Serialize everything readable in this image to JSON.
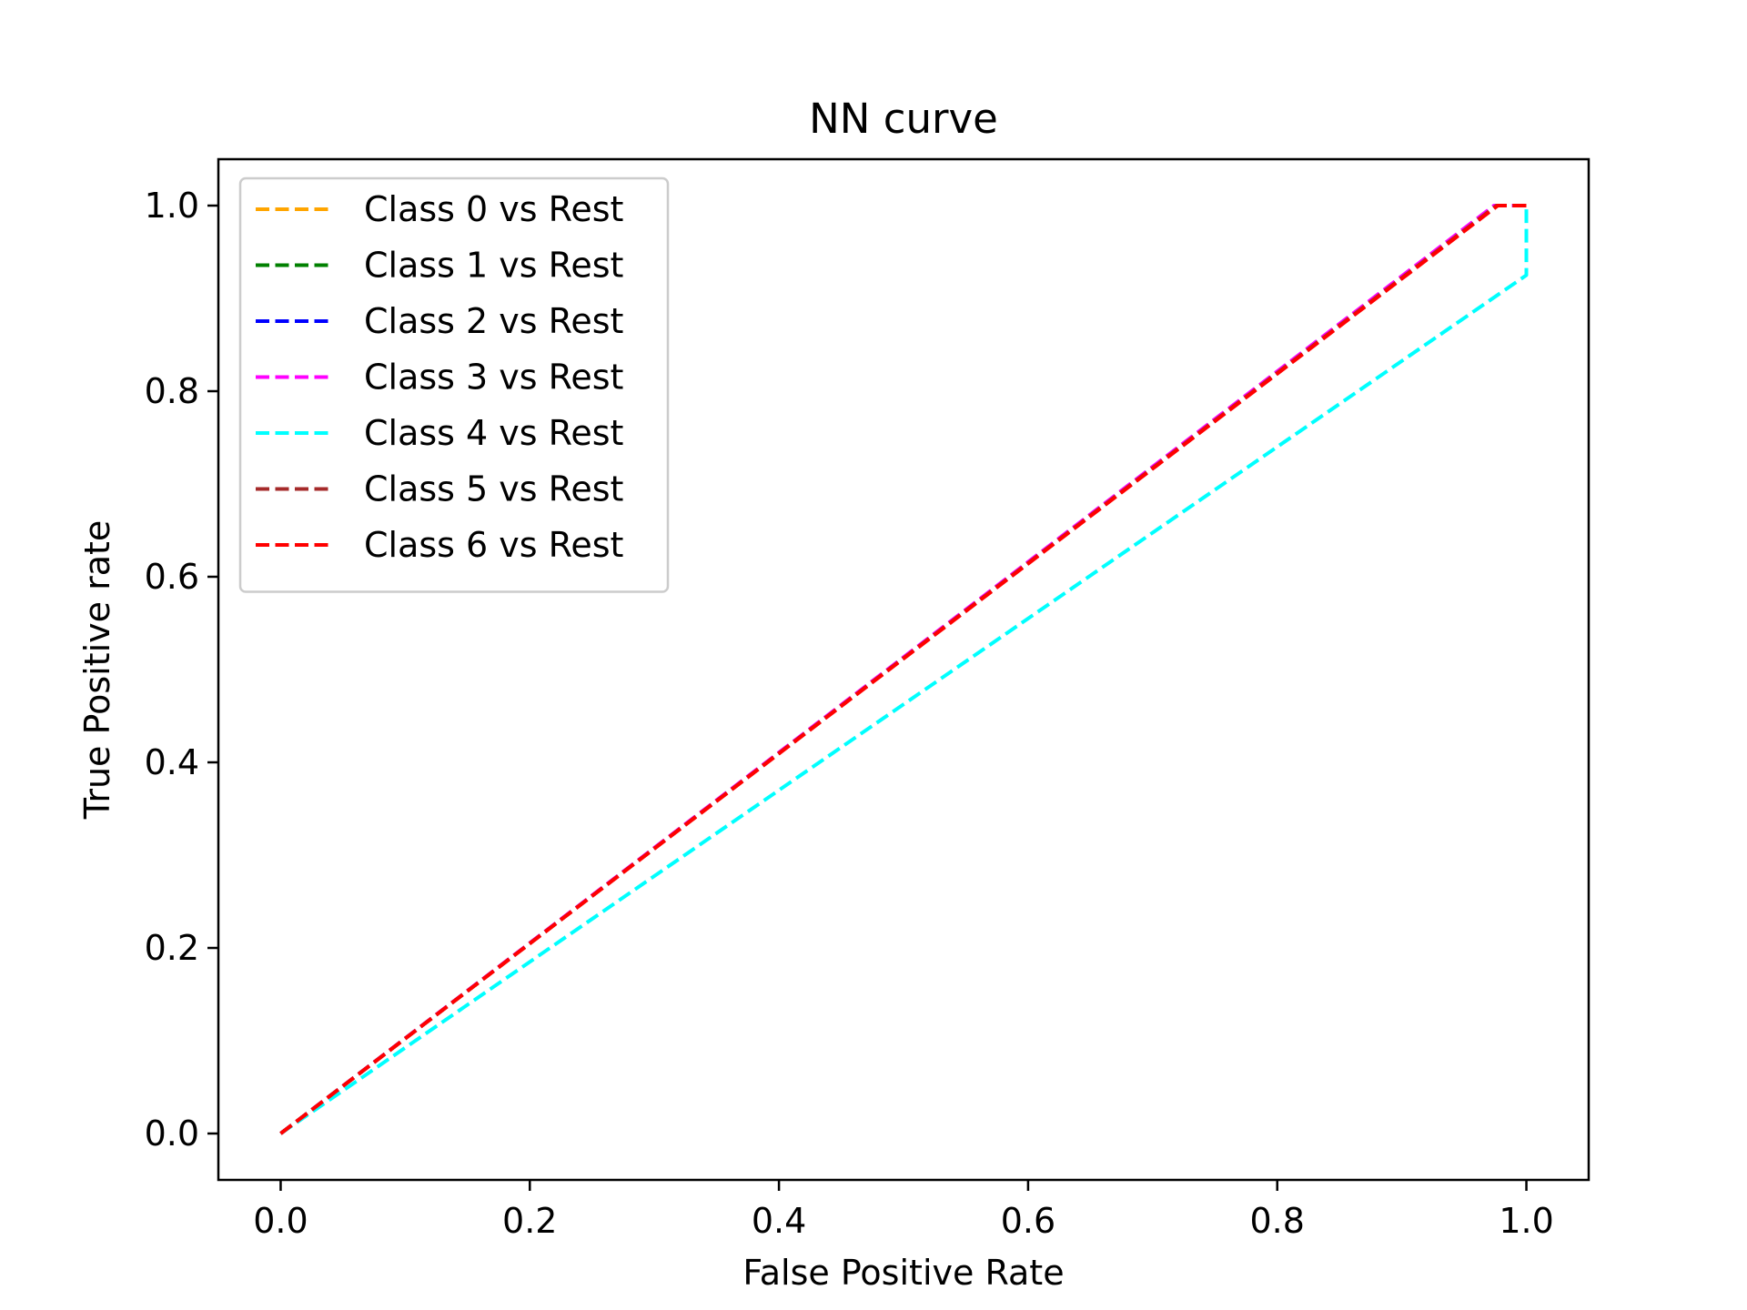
{
  "chart_data": {
    "type": "line",
    "title": "NN curve",
    "xlabel": "False Positive Rate",
    "ylabel": "True Positive rate",
    "xlim": [
      -0.05,
      1.05
    ],
    "ylim": [
      -0.05,
      1.05
    ],
    "xticks": [
      0.0,
      0.2,
      0.4,
      0.6,
      0.8,
      1.0
    ],
    "yticks": [
      0.0,
      0.2,
      0.4,
      0.6,
      0.8,
      1.0
    ],
    "xtick_labels": [
      "0.0",
      "0.2",
      "0.4",
      "0.6",
      "0.8",
      "1.0"
    ],
    "ytick_labels": [
      "0.0",
      "0.2",
      "0.4",
      "0.6",
      "0.8",
      "1.0"
    ],
    "grid": false,
    "legend_position": "upper left",
    "line_style": "dashed",
    "series": [
      {
        "name": "Class 0 vs Rest",
        "color": "#ffa500",
        "x": [
          0.0,
          0.976,
          1.0
        ],
        "y": [
          0.0,
          1.0,
          1.0
        ]
      },
      {
        "name": "Class 1 vs Rest",
        "color": "#008000",
        "x": [
          0.0,
          0.976,
          1.0
        ],
        "y": [
          0.0,
          1.0,
          1.0
        ]
      },
      {
        "name": "Class 2 vs Rest",
        "color": "#0000ff",
        "x": [
          0.0,
          0.975,
          1.0
        ],
        "y": [
          0.0,
          1.0,
          1.0
        ]
      },
      {
        "name": "Class 3 vs Rest",
        "color": "#ff00ff",
        "x": [
          0.0,
          0.974,
          1.0
        ],
        "y": [
          0.0,
          1.0,
          1.0
        ]
      },
      {
        "name": "Class 4 vs Rest",
        "color": "#00ffff",
        "x": [
          0.0,
          1.0,
          1.0,
          1.0
        ],
        "y": [
          0.0,
          0.925,
          1.0,
          1.0
        ]
      },
      {
        "name": "Class 5 vs Rest",
        "color": "#a52a2a",
        "x": [
          0.0,
          0.976,
          1.0
        ],
        "y": [
          0.0,
          1.0,
          1.0
        ]
      },
      {
        "name": "Class 6 vs Rest",
        "color": "#ff0000",
        "x": [
          0.0,
          0.977,
          1.0
        ],
        "y": [
          0.0,
          1.0,
          1.0
        ]
      }
    ]
  }
}
